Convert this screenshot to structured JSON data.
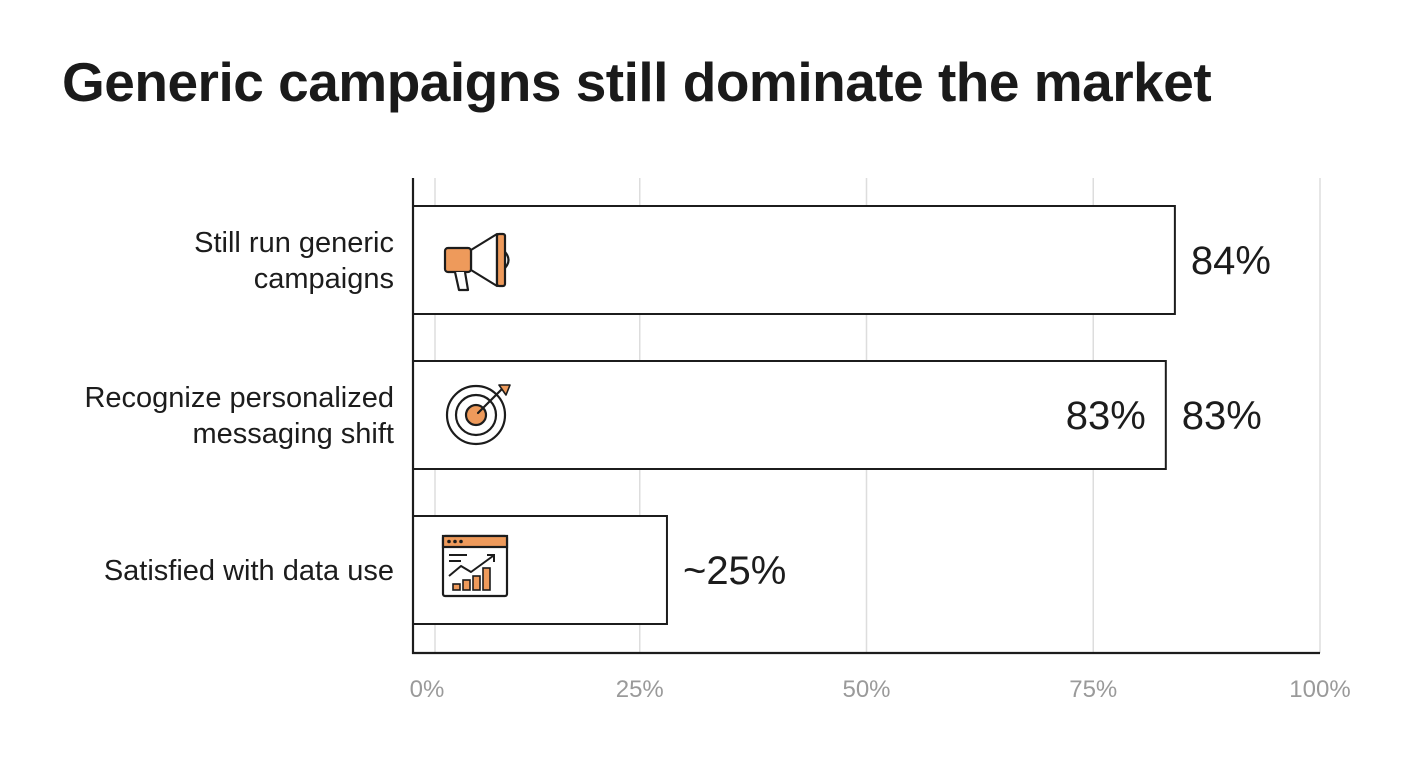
{
  "title": "Generic campaigns still dominate the market",
  "colors": {
    "accent": "#EE9A5B",
    "ink": "#1C1C1C",
    "grid": "#DDDDDD",
    "tick": "#9A9A9A"
  },
  "chart_data": {
    "type": "bar",
    "orientation": "horizontal",
    "title": "Generic campaigns still dominate the market",
    "xlabel": "",
    "ylabel": "",
    "xlim": [
      0,
      100
    ],
    "grid": true,
    "ticks": [
      "0%",
      "25%",
      "50%",
      "75%",
      "100%"
    ],
    "categories": [
      {
        "lines": [
          "Still run generic",
          "campaigns"
        ],
        "icon": "megaphone-icon"
      },
      {
        "lines": [
          "Recognize personalized",
          "messaging shift"
        ],
        "icon": "target-icon"
      },
      {
        "lines": [
          "Satisfied with data use"
        ],
        "icon": "analytics-dashboard-icon"
      }
    ],
    "values": [
      84,
      83,
      28
    ],
    "value_labels": [
      "84%",
      "83%",
      "~25%"
    ],
    "inner_labels": [
      "",
      "83%",
      ""
    ]
  }
}
